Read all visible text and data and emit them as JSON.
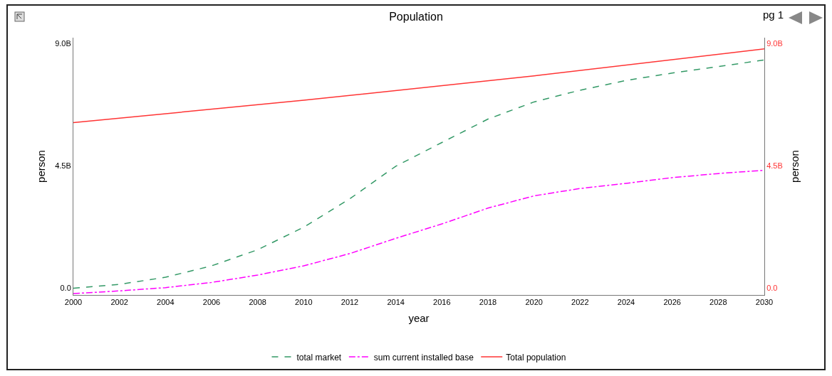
{
  "chart_data": {
    "type": "line",
    "title": "Population",
    "xlabel": "year",
    "ylabel": "person",
    "y2label": "person",
    "annotations": [
      "pg 1"
    ],
    "x": [
      2000,
      2002,
      2004,
      2006,
      2008,
      2010,
      2012,
      2014,
      2016,
      2018,
      2020,
      2022,
      2024,
      2026,
      2028,
      2030
    ],
    "series": [
      {
        "name": "total market",
        "color": "#339966",
        "line_style": "dashed",
        "values": [
          0,
          140000000,
          400000000,
          820000000,
          1410000000,
          2240000000,
          3280000000,
          4480000000,
          5350000000,
          6210000000,
          6840000000,
          7270000000,
          7630000000,
          7900000000,
          8140000000,
          8380000000
        ]
      },
      {
        "name": "sum current installed base",
        "color": "#ff00ff",
        "line_style": "dashdot",
        "values": [
          -200000000,
          -100000000,
          20000000,
          210000000,
          480000000,
          820000000,
          1270000000,
          1830000000,
          2360000000,
          2940000000,
          3390000000,
          3660000000,
          3850000000,
          4060000000,
          4210000000,
          4330000000
        ]
      },
      {
        "name": "Total population",
        "color": "#ff3333",
        "line_style": "solid",
        "axis": "y2",
        "x": [
          2000,
          2010,
          2020,
          2030
        ],
        "values": [
          6080000000,
          6900000000,
          7800000000,
          8790000000
        ]
      }
    ],
    "xlim": [
      2000,
      2030
    ],
    "xticks": [
      2000,
      2002,
      2004,
      2006,
      2008,
      2010,
      2012,
      2014,
      2016,
      2018,
      2020,
      2022,
      2024,
      2026,
      2028,
      2030
    ],
    "ylim": [
      -250000000,
      9200000000
    ],
    "yticks": [
      {
        "value": 0,
        "label": "0.0"
      },
      {
        "value": 4500000000,
        "label": "4.5B"
      },
      {
        "value": 9000000000,
        "label": "9.0B"
      }
    ],
    "y2lim": [
      -250000000,
      9200000000
    ],
    "y2ticks": [
      {
        "value": 0,
        "label": "0.0"
      },
      {
        "value": 4500000000,
        "label": "4.5B"
      },
      {
        "value": 9000000000,
        "label": "9.0B"
      }
    ],
    "grid": false,
    "legend": "bottom",
    "marker": "none"
  }
}
